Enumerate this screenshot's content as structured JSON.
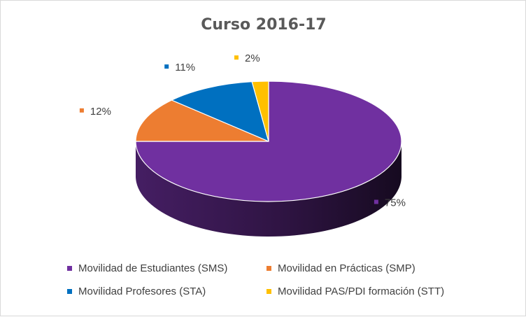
{
  "chart_data": {
    "type": "pie",
    "title": "Curso 2016-17",
    "three_d": true,
    "categories": [
      "Movilidad de Estudiantes (SMS)",
      "Movilidad en Prácticas (SMP)",
      "Movilidad Profesores (STA)",
      "Movilidad PAS/PDI formación (STT)"
    ],
    "values": [
      75,
      12,
      11,
      2
    ],
    "labels": [
      "75%",
      "12%",
      "11%",
      "2%"
    ],
    "colors": [
      "#7030a0",
      "#ed7d31",
      "#0070c0",
      "#ffc000"
    ],
    "legend_position": "bottom"
  }
}
